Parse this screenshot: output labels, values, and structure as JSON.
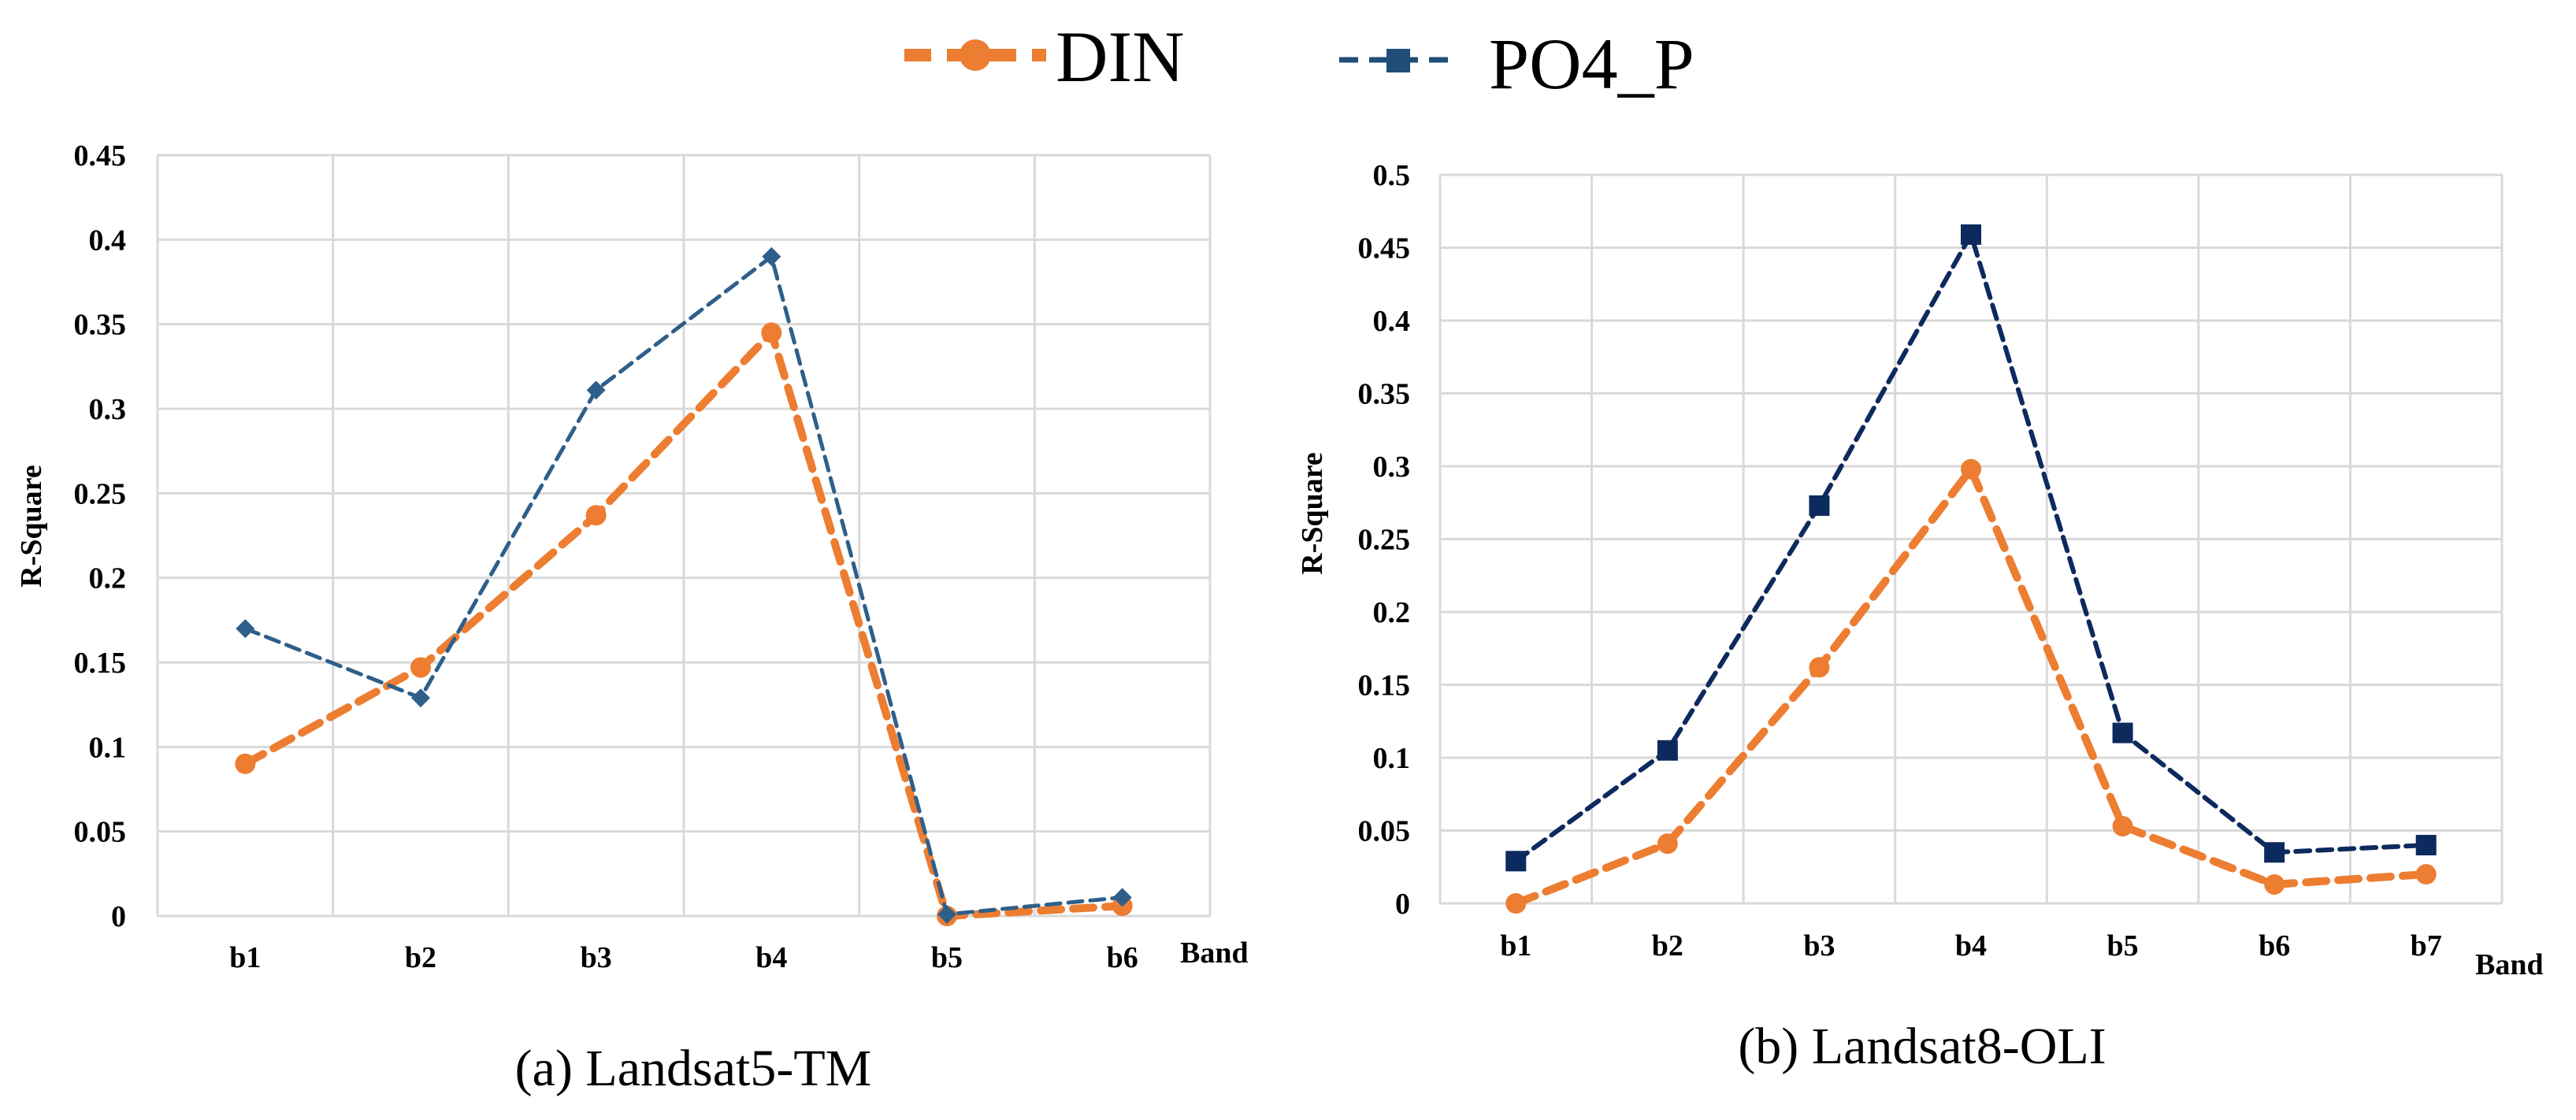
{
  "legend": {
    "items": [
      {
        "name": "DIN",
        "color": "#ed7d31",
        "marker": "circle"
      },
      {
        "name": "PO4_P",
        "color": "#1f4e79",
        "marker": "square"
      }
    ]
  },
  "chart_data": [
    {
      "type": "line",
      "caption": "(a) Landsat5-TM",
      "xlabel": "Band",
      "ylabel": "R-Square",
      "categories": [
        "b1",
        "b2",
        "b3",
        "b4",
        "b5",
        "b6"
      ],
      "ylim": [
        0,
        0.45
      ],
      "yticks": [
        0,
        0.05,
        0.1,
        0.15,
        0.2,
        0.25,
        0.3,
        0.35,
        0.4,
        0.45
      ],
      "ytick_labels": [
        "0",
        "0.05",
        "0.1",
        "0.15",
        "0.2",
        "0.25",
        "0.3",
        "0.35",
        "0.4",
        "0.45"
      ],
      "grid": true,
      "series": [
        {
          "name": "DIN",
          "color": "#ed7d31",
          "marker": "circle",
          "values": [
            0.09,
            0.147,
            0.237,
            0.345,
            0.0,
            0.006
          ]
        },
        {
          "name": "PO4_P",
          "color": "#2e5f8a",
          "marker": "diamond",
          "values": [
            0.17,
            0.129,
            0.311,
            0.39,
            0.001,
            0.011
          ]
        }
      ]
    },
    {
      "type": "line",
      "caption": "(b) Landsat8-OLI",
      "xlabel": "Band",
      "ylabel": "R-Square",
      "categories": [
        "b1",
        "b2",
        "b3",
        "b4",
        "b5",
        "b6",
        "b7"
      ],
      "ylim": [
        0,
        0.5
      ],
      "yticks": [
        0,
        0.05,
        0.1,
        0.15,
        0.2,
        0.25,
        0.3,
        0.35,
        0.4,
        0.45,
        0.5
      ],
      "ytick_labels": [
        "0",
        "0.05",
        "0.1",
        "0.15",
        "0.2",
        "0.25",
        "0.3",
        "0.35",
        "0.4",
        "0.45",
        "0.5"
      ],
      "grid": true,
      "series": [
        {
          "name": "DIN",
          "color": "#ed7d31",
          "marker": "circle",
          "values": [
            0.0,
            0.041,
            0.162,
            0.298,
            0.053,
            0.013,
            0.02
          ]
        },
        {
          "name": "PO4_P",
          "color": "#0d2a5e",
          "marker": "square",
          "values": [
            0.029,
            0.105,
            0.273,
            0.459,
            0.117,
            0.035,
            0.04
          ]
        }
      ]
    }
  ]
}
